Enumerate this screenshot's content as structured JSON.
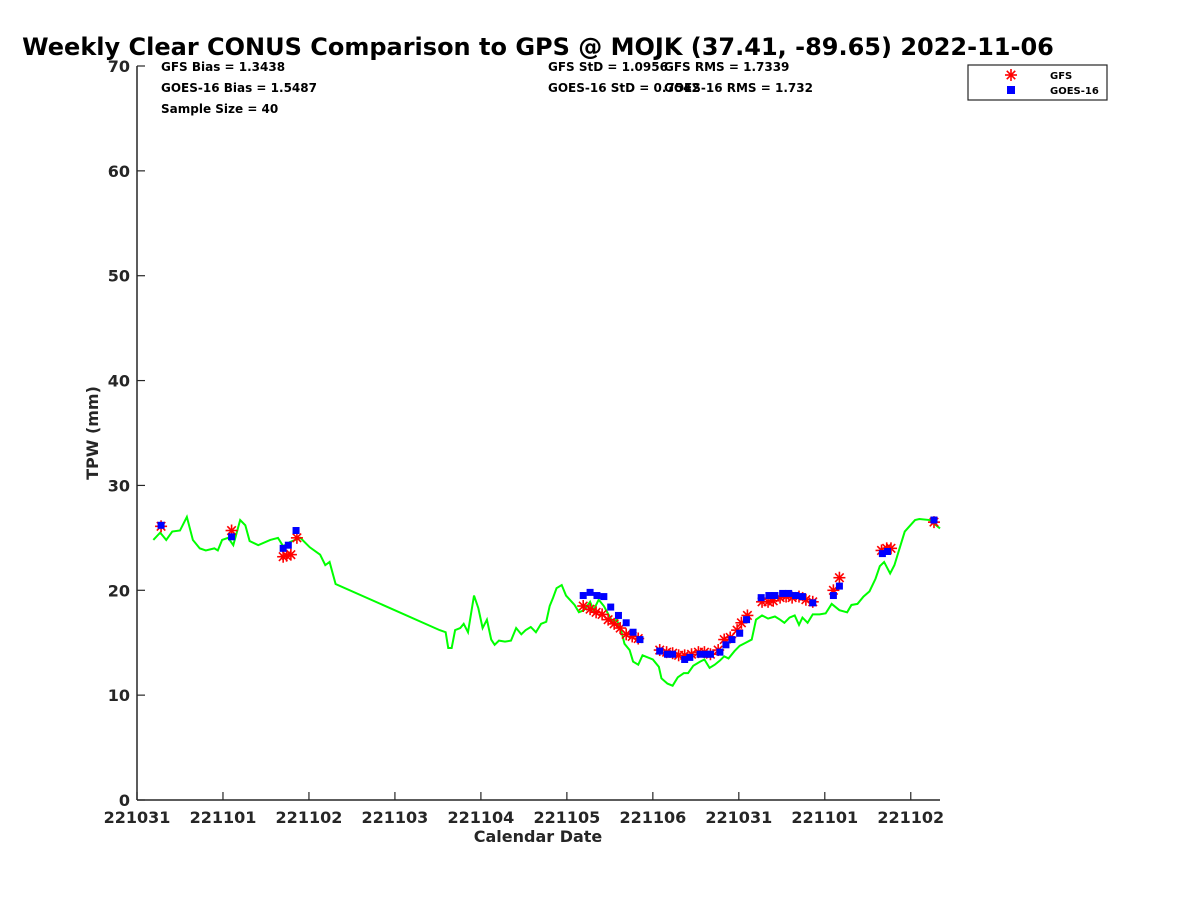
{
  "chart_data": {
    "type": "line",
    "title": "Weekly Clear CONUS Comparison to GPS @ MOJK (37.41, -89.65) 2022-11-06",
    "xlabel": "Calendar Date",
    "ylabel": "TPW (mm)",
    "xlim": [
      0,
      9.34
    ],
    "ylim": [
      0,
      70
    ],
    "grid": false,
    "legend_placement": "top-right",
    "x_ticks": [
      0,
      1,
      2,
      3,
      4,
      5,
      6,
      7,
      8,
      9
    ],
    "x_tick_labels": [
      "221031",
      "221101",
      "221102",
      "221103",
      "221104",
      "221105",
      "221106",
      "221031",
      "221101",
      "221102"
    ],
    "y_ticks": [
      0,
      10,
      20,
      30,
      40,
      50,
      60,
      70
    ],
    "y_tick_labels": [
      "0",
      "10",
      "20",
      "30",
      "40",
      "50",
      "60",
      "70"
    ],
    "stats": {
      "gfs_bias": "GFS Bias = 1.3438",
      "goes_bias": "GOES-16 Bias = 1.5487",
      "sample_size": "Sample Size = 40",
      "gfs_std": "GFS StD = 1.0956",
      "goes_std": "GOES-16 StD = 0.7542",
      "gfs_rms": "GFS RMS = 1.7339",
      "goes_rms": "GOES-16 RMS = 1.732"
    },
    "legend": [
      {
        "name": "GFS",
        "color": "#ff0000",
        "marker": "asterisk"
      },
      {
        "name": "GOES-16",
        "color": "#0000ff",
        "marker": "square"
      }
    ],
    "series": [
      {
        "name": "GPS",
        "color": "#00ff00",
        "style": "line",
        "x": [
          0.19,
          0.27,
          0.34,
          0.41,
          0.5,
          0.58,
          0.65,
          0.73,
          0.8,
          0.9,
          0.94,
          0.99,
          1.06,
          1.12,
          1.2,
          1.26,
          1.31,
          1.41,
          1.55,
          1.64,
          1.7,
          1.78,
          1.9,
          2.01,
          2.13,
          2.19,
          2.24,
          2.31,
          3.52,
          3.59,
          3.62,
          3.66,
          3.7,
          3.76,
          3.8,
          3.85,
          3.92,
          3.97,
          4.02,
          4.07,
          4.12,
          4.16,
          4.21,
          4.28,
          4.35,
          4.41,
          4.47,
          4.52,
          4.58,
          4.64,
          4.7,
          4.76,
          4.8,
          4.84,
          4.88,
          4.94,
          4.99,
          5.09,
          5.14,
          5.2,
          5.27,
          5.31,
          5.37,
          5.43,
          5.49,
          5.53,
          5.58,
          5.64,
          5.67,
          5.73,
          5.77,
          5.83,
          5.88,
          6.0,
          6.07,
          6.1,
          6.17,
          6.23,
          6.29,
          6.36,
          6.41,
          6.47,
          6.55,
          6.6,
          6.66,
          6.72,
          6.78,
          6.83,
          6.88,
          6.95,
          7.01,
          7.08,
          7.15,
          7.2,
          7.27,
          7.34,
          7.42,
          7.48,
          7.53,
          7.59,
          7.65,
          7.7,
          7.74,
          7.8,
          7.86,
          7.94,
          8.01,
          8.08,
          8.17,
          8.26,
          8.31,
          8.38,
          8.45,
          8.52,
          8.59,
          8.64,
          8.69,
          8.76,
          8.81,
          8.87,
          8.93,
          9.05,
          9.1,
          9.22,
          9.34
        ],
        "y": [
          24.8,
          25.5,
          24.8,
          25.6,
          25.7,
          27.0,
          24.8,
          24.0,
          23.8,
          24.0,
          23.8,
          24.8,
          25.0,
          24.3,
          26.7,
          26.2,
          24.7,
          24.3,
          24.8,
          25.0,
          24.2,
          24.6,
          25.0,
          24.1,
          23.4,
          22.4,
          22.7,
          20.6,
          16.2,
          16.0,
          14.5,
          14.5,
          16.2,
          16.4,
          16.8,
          16.0,
          19.5,
          18.3,
          16.4,
          17.2,
          15.3,
          14.8,
          15.2,
          15.1,
          15.2,
          16.4,
          15.8,
          16.2,
          16.5,
          16.0,
          16.8,
          17.0,
          18.5,
          19.3,
          20.2,
          20.5,
          19.5,
          18.6,
          17.9,
          18.1,
          18.9,
          18.1,
          19.1,
          18.5,
          17.6,
          17.0,
          17.2,
          15.9,
          14.9,
          14.3,
          13.2,
          12.9,
          13.8,
          13.4,
          12.7,
          11.6,
          11.1,
          10.9,
          11.7,
          12.1,
          12.1,
          12.8,
          13.2,
          13.4,
          12.6,
          12.9,
          13.3,
          13.7,
          13.5,
          14.2,
          14.7,
          15.0,
          15.3,
          17.2,
          17.6,
          17.3,
          17.5,
          17.2,
          16.9,
          17.4,
          17.6,
          16.7,
          17.4,
          16.9,
          17.7,
          17.7,
          17.8,
          18.7,
          18.1,
          17.9,
          18.6,
          18.7,
          19.4,
          19.9,
          21.1,
          22.3,
          22.7,
          21.6,
          22.4,
          24.0,
          25.6,
          26.7,
          26.8,
          26.7,
          25.9
        ]
      },
      {
        "name": "GFS",
        "color": "#ff0000",
        "style": "asterisk",
        "x": [
          0.28,
          1.1,
          1.7,
          1.74,
          1.79,
          1.86,
          5.19,
          5.27,
          5.34,
          5.41,
          5.48,
          5.55,
          5.62,
          5.69,
          5.76,
          5.83,
          6.08,
          6.16,
          6.23,
          6.3,
          6.37,
          6.45,
          6.53,
          6.6,
          6.67,
          6.76,
          6.83,
          6.9,
          6.98,
          7.03,
          7.1,
          7.27,
          7.34,
          7.4,
          7.48,
          7.55,
          7.62,
          7.7,
          7.78,
          7.86,
          8.1,
          8.17,
          8.66,
          8.72,
          8.77,
          9.27
        ],
        "y": [
          26.1,
          25.7,
          23.2,
          23.3,
          23.4,
          25.0,
          18.5,
          18.2,
          17.9,
          17.7,
          17.2,
          16.8,
          16.4,
          15.8,
          15.6,
          15.4,
          14.3,
          14.1,
          14.0,
          13.8,
          13.8,
          13.9,
          14.1,
          14.1,
          13.9,
          14.3,
          15.3,
          15.5,
          16.2,
          16.9,
          17.6,
          18.9,
          18.9,
          19.0,
          19.3,
          19.4,
          19.3,
          19.4,
          19.1,
          18.9,
          20.0,
          21.2,
          23.8,
          24.0,
          24.0,
          26.5
        ]
      },
      {
        "name": "GOES-16",
        "color": "#0000ff",
        "style": "square",
        "x": [
          0.28,
          1.1,
          1.7,
          1.76,
          1.85,
          5.19,
          5.27,
          5.35,
          5.43,
          5.51,
          5.6,
          5.69,
          5.77,
          5.85,
          6.08,
          6.17,
          6.23,
          6.37,
          6.43,
          6.55,
          6.62,
          6.67,
          6.78,
          6.85,
          6.92,
          7.01,
          7.09,
          7.26,
          7.35,
          7.42,
          7.51,
          7.58,
          7.66,
          7.74,
          7.86,
          8.1,
          8.17,
          8.67,
          8.73,
          9.27
        ],
        "y": [
          26.2,
          25.1,
          24.0,
          24.3,
          25.7,
          19.5,
          19.8,
          19.5,
          19.4,
          18.4,
          17.6,
          16.9,
          16.0,
          15.3,
          14.2,
          13.9,
          13.9,
          13.4,
          13.6,
          13.9,
          13.9,
          13.9,
          14.1,
          14.8,
          15.3,
          15.9,
          17.2,
          19.3,
          19.5,
          19.5,
          19.7,
          19.7,
          19.5,
          19.4,
          18.8,
          19.5,
          20.4,
          23.5,
          23.7,
          26.7
        ]
      }
    ]
  }
}
